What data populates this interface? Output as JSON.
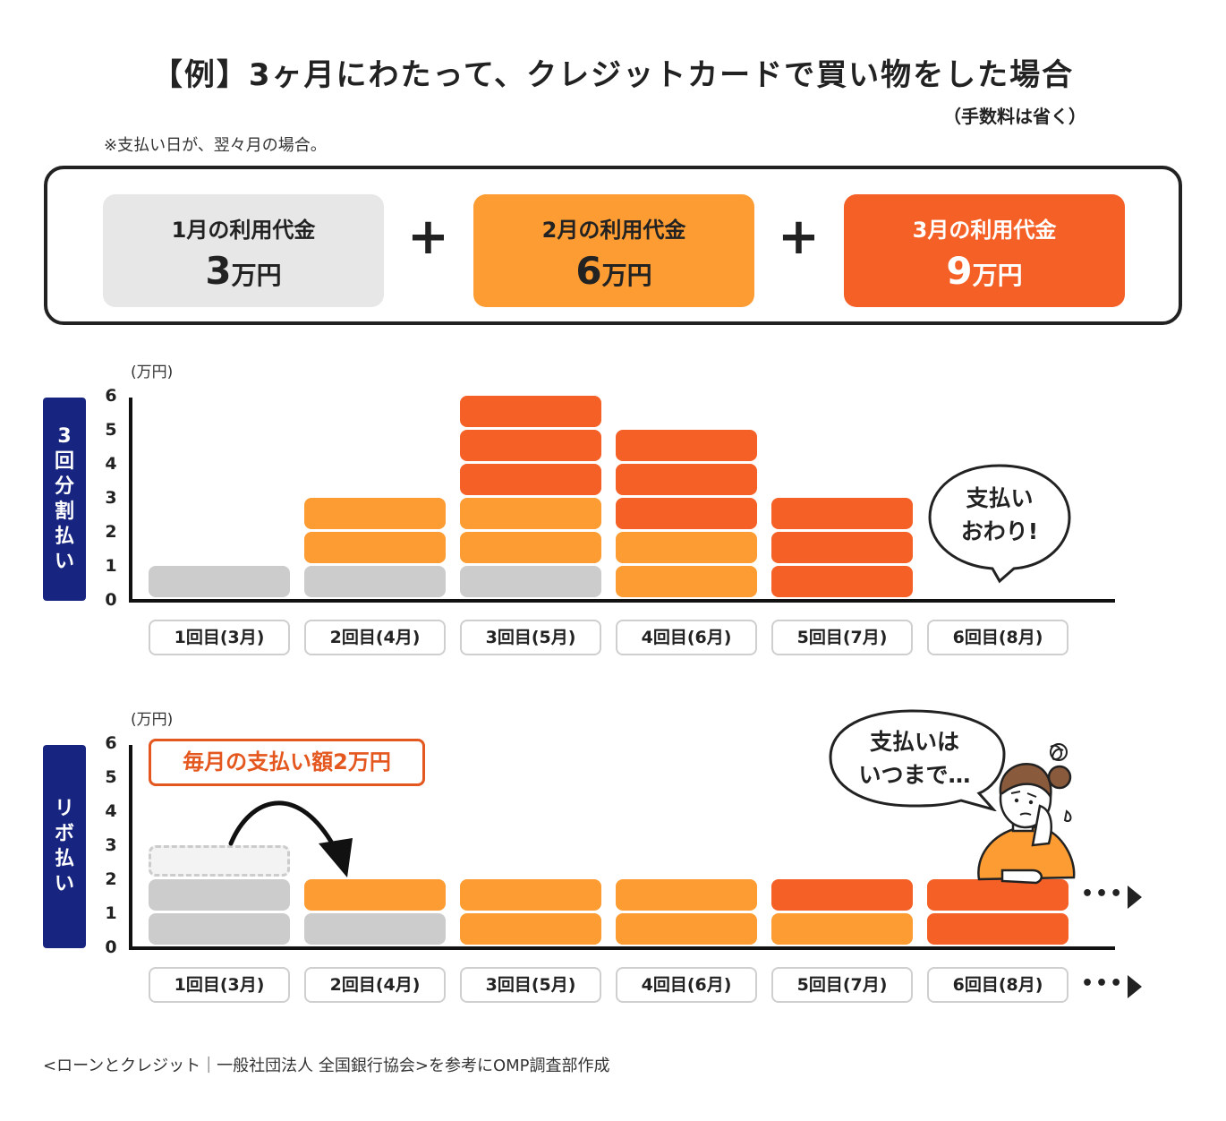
{
  "title": "【例】3ヶ月にわたって、クレジットカードで買い物をした場合",
  "note_fee": "（手数料は省く）",
  "note_pay": "※支払い日が、翌々月の場合。",
  "colors": {
    "jan": "#cccccc",
    "feb": "#fd9c32",
    "mar": "#f56026",
    "box_jan": "#e7e7e7",
    "navy": "#172580",
    "callout": "#e4571f"
  },
  "summary": {
    "boxes": [
      {
        "label": "1月の利用代金",
        "num": "3",
        "unit": "万円"
      },
      {
        "label": "2月の利用代金",
        "num": "6",
        "unit": "万円"
      },
      {
        "label": "3月の利用代金",
        "num": "9",
        "unit": "万円"
      }
    ],
    "plus": "+"
  },
  "chart_data": [
    {
      "type": "bar",
      "stacked": true,
      "title": "3回分割払い",
      "ylabel": "(万円)",
      "ylim": [
        0,
        6
      ],
      "yticks": [
        "0",
        "1",
        "2",
        "3",
        "4",
        "5",
        "6"
      ],
      "categories": [
        "1回目(3月)",
        "2回目(4月)",
        "3回目(5月)",
        "4回目(6月)",
        "5回目(7月)",
        "6回目(8月)"
      ],
      "series": [
        {
          "name": "1月の利用代金",
          "color": "#cccccc",
          "values": [
            1,
            1,
            1,
            0,
            0,
            0
          ]
        },
        {
          "name": "2月の利用代金",
          "color": "#fd9c32",
          "values": [
            0,
            2,
            2,
            2,
            0,
            0
          ]
        },
        {
          "name": "3月の利用代金",
          "color": "#f56026",
          "values": [
            0,
            0,
            3,
            3,
            3,
            0
          ]
        }
      ],
      "annotation": "支払い おわり!",
      "annotation_lines": [
        "支払い",
        "おわり!"
      ]
    },
    {
      "type": "bar",
      "stacked": true,
      "title": "リボ払い",
      "ylabel": "(万円)",
      "ylim": [
        0,
        6
      ],
      "yticks": [
        "0",
        "1",
        "2",
        "3",
        "4",
        "5",
        "6"
      ],
      "categories": [
        "1回目(3月)",
        "2回目(4月)",
        "3回目(5月)",
        "4回目(6月)",
        "5回目(7月)",
        "6回目(8月)"
      ],
      "series": [
        {
          "name": "1月の利用代金",
          "color": "#cccccc",
          "values": [
            2,
            1,
            0,
            0,
            0,
            0
          ]
        },
        {
          "name": "2月の利用代金",
          "color": "#fd9c32",
          "values": [
            0,
            1,
            2,
            2,
            1,
            0
          ]
        },
        {
          "name": "3月の利用代金",
          "color": "#f56026",
          "values": [
            0,
            0,
            0,
            0,
            1,
            2
          ]
        }
      ],
      "carryover": {
        "category": "1回目(3月)",
        "value": 1,
        "moved_to": "2回目(4月)"
      },
      "callout": "毎月の支払い額2万円",
      "annotation": "支払いは いつまで…",
      "annotation_lines": [
        "支払いは",
        "いつまで…"
      ],
      "continues": "•••"
    }
  ],
  "side_labels": {
    "split": [
      "3",
      "回",
      "分",
      "割",
      "払",
      "い"
    ],
    "revo": [
      "リ",
      "ボ",
      "払",
      "い"
    ]
  },
  "source": "<ローンとクレジット｜一般社団法人 全国銀行協会>を参考にOMP調査部作成"
}
